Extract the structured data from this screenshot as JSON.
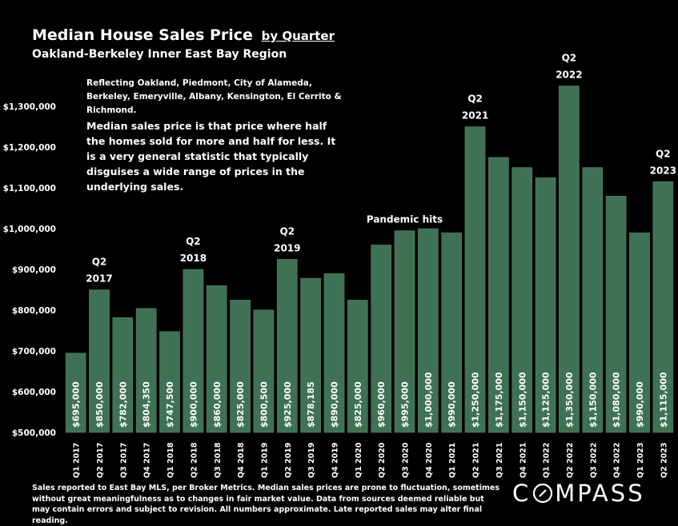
{
  "header": {
    "title": "Median House Sales Price",
    "title_suffix": "by Quarter",
    "subtitle": "Oakland-Berkeley Inner East Bay Region"
  },
  "notes": {
    "region": "Reflecting Oakland, Piedmont, City of Alameda, Berkeley, Emeryville, Albany, Kensington, El Cerrito & Richmond.",
    "definition": "Median sales price is that price where half the homes sold for more and half for less. It is a very general statistic that typically disguises a wide range of prices in the underlying sales."
  },
  "footer": {
    "note": "Sales reported to East Bay MLS, per Broker Metrics. Median sales prices are prone to fluctuation, sometimes without great meaningfulness as to changes in fair market value. Data from sources deemed reliable but may contain errors and subject to revision. All numbers approximate. Late reported sales may alter final reading.",
    "logo_text": "COMPASS"
  },
  "colors": {
    "background": "#000000",
    "bar": "#3f7254",
    "bar_edge": "#567f65",
    "text": "#ffffff",
    "grid": "#3a3a3a"
  },
  "chart_data": {
    "type": "bar",
    "categories": [
      "Q1 2017",
      "Q2 2017",
      "Q3 2017",
      "Q4 2017",
      "Q1 2018",
      "Q2 2018",
      "Q3 2018",
      "Q4 2018",
      "Q1 2019",
      "Q2 2019",
      "Q3 2019",
      "Q4 2019",
      "Q1 2020",
      "Q2 2020",
      "Q3 2020",
      "Q4 2020",
      "Q1 2021",
      "Q2 2021",
      "Q3 2021",
      "Q4 2021",
      "Q1 2022",
      "Q2 2022",
      "Q3 2022",
      "Q4 2022",
      "Q1 2023",
      "Q2 2023"
    ],
    "values": [
      695000,
      850000,
      782000,
      804350,
      747500,
      900000,
      860000,
      825000,
      800500,
      925000,
      878185,
      890000,
      825000,
      960000,
      995000,
      1000000,
      990000,
      1250000,
      1175000,
      1150000,
      1125000,
      1350000,
      1150000,
      1080000,
      990000,
      1115000
    ],
    "value_labels": [
      "$695,000",
      "$850,000",
      "$782,000",
      "$804,350",
      "$747,500",
      "$900,000",
      "$860,000",
      "$825,000",
      "$800,500",
      "$925,000",
      "$878,185",
      "$890,000",
      "$825,000",
      "$960,000",
      "$995,000",
      "$1,000,000",
      "$990,000",
      "$1,250,000",
      "$1,175,000",
      "$1,150,000",
      "$1,125,000",
      "$1,350,000",
      "$1,150,000",
      "$1,080,000",
      "$990,000",
      "$1,115,000"
    ],
    "y_ticks": [
      500000,
      600000,
      700000,
      800000,
      900000,
      1000000,
      1100000,
      1200000,
      1300000
    ],
    "y_tick_labels": [
      "$500,000",
      "$600,000",
      "$700,000",
      "$800,000",
      "$900,000",
      "$1,000,000",
      "$1,100,000",
      "$1,200,000",
      "$1,300,000"
    ],
    "ylim": [
      500000,
      1400000
    ],
    "grid": false,
    "annotations": [
      {
        "index": 1,
        "lines": [
          "Q2",
          "2017"
        ]
      },
      {
        "index": 5,
        "lines": [
          "Q2",
          "2018"
        ]
      },
      {
        "index": 9,
        "lines": [
          "Q2",
          "2019"
        ]
      },
      {
        "index": 14,
        "lines": [
          "Pandemic hits"
        ]
      },
      {
        "index": 17,
        "lines": [
          "Q2",
          "2021"
        ]
      },
      {
        "index": 21,
        "lines": [
          "Q2",
          "2022"
        ]
      },
      {
        "index": 25,
        "lines": [
          "Q2",
          "2023"
        ]
      }
    ]
  }
}
